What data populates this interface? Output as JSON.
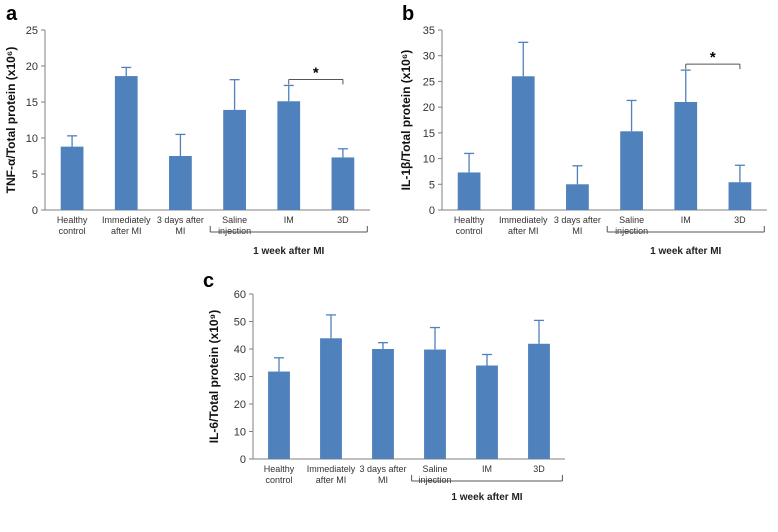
{
  "colors": {
    "bar": "#4f81bd",
    "axis": "#808080",
    "text": "#333333",
    "bracket": "#555555"
  },
  "chart_data": [
    {
      "panel": "a",
      "type": "bar",
      "ylabel": "TNF-α/Total protein (x10⁶)",
      "ylim": [
        0,
        25
      ],
      "yticks": [
        "0",
        "5",
        "10",
        "15",
        "20",
        "25"
      ],
      "categories": [
        [
          "Healthy",
          "control"
        ],
        [
          "Immediately",
          "after MI"
        ],
        [
          "3 days after",
          "MI"
        ],
        [
          "Saline",
          "injection"
        ],
        [
          "IM"
        ],
        [
          "3D"
        ]
      ],
      "values": [
        8.8,
        18.6,
        7.5,
        13.9,
        15.1,
        7.3
      ],
      "errors": [
        1.5,
        1.2,
        3.0,
        4.2,
        2.2,
        1.2
      ],
      "group_label": "1 week after MI",
      "group_span": [
        3,
        5
      ],
      "significance": {
        "from": 4,
        "to": 5,
        "label": "*"
      }
    },
    {
      "panel": "b",
      "type": "bar",
      "ylabel": "IL-1β/Total protein (x10⁶)",
      "ylim": [
        0,
        35
      ],
      "yticks": [
        "0",
        "5",
        "10",
        "15",
        "20",
        "25",
        "30",
        "35"
      ],
      "categories": [
        [
          "Healthy",
          "control"
        ],
        [
          "Immediately",
          "after MI"
        ],
        [
          "3 days after",
          "MI"
        ],
        [
          "Saline",
          "injection"
        ],
        [
          "IM"
        ],
        [
          "3D"
        ]
      ],
      "values": [
        7.3,
        26.0,
        5.0,
        15.3,
        21.0,
        5.4
      ],
      "errors": [
        3.7,
        6.6,
        3.6,
        6.0,
        6.2,
        3.3
      ],
      "group_label": "1 week after MI",
      "group_span": [
        3,
        5
      ],
      "significance": {
        "from": 4,
        "to": 5,
        "label": "*"
      }
    },
    {
      "panel": "c",
      "type": "bar",
      "ylabel": "IL-6/Total protein (x10⁹)",
      "ylim": [
        0,
        60
      ],
      "yticks": [
        "0",
        "10",
        "20",
        "30",
        "40",
        "50",
        "60"
      ],
      "categories": [
        [
          "Healthy",
          "control"
        ],
        [
          "Immediately",
          "after MI"
        ],
        [
          "3 days after",
          "MI"
        ],
        [
          "Saline",
          "injection"
        ],
        [
          "IM"
        ],
        [
          "3D"
        ]
      ],
      "values": [
        31.8,
        43.9,
        40.0,
        39.8,
        34.0,
        41.9
      ],
      "errors": [
        5.0,
        8.5,
        2.3,
        8.0,
        4.0,
        8.5
      ],
      "group_label": "1 week after MI",
      "group_span": [
        3,
        5
      ],
      "significance": null
    }
  ]
}
